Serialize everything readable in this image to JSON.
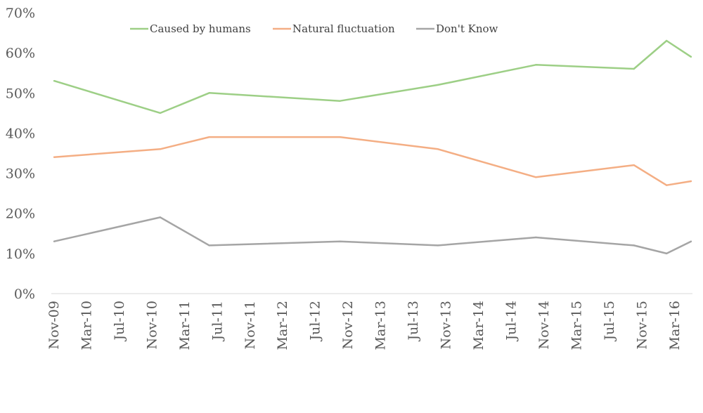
{
  "chart_data": {
    "type": "line",
    "title": "",
    "xlabel": "",
    "ylabel": "",
    "x_tick_labels": [
      "Nov-09",
      "Mar-10",
      "Jul-10",
      "Nov-10",
      "Mar-11",
      "Jul-11",
      "Nov-11",
      "Mar-12",
      "Jul-12",
      "Nov-12",
      "Mar-13",
      "Jul-13",
      "Nov-13",
      "Mar-14",
      "Jul-14",
      "Nov-14",
      "Mar-15",
      "Jul-15",
      "Nov-15",
      "Mar-16"
    ],
    "x_range": [
      "Nov-09",
      "May-16"
    ],
    "y_tick_labels": [
      "0%",
      "10%",
      "20%",
      "30%",
      "40%",
      "50%",
      "60%",
      "70%"
    ],
    "ylim": [
      0,
      70
    ],
    "y_unit": "%",
    "grid": false,
    "legend_position": "top",
    "x": [
      "Nov-09",
      "Dec-10",
      "Jun-11",
      "Oct-12",
      "Oct-13",
      "Oct-14",
      "Oct-15",
      "Feb-16",
      "May-16"
    ],
    "series": [
      {
        "name": "Caused by humans",
        "color": "#9dcf86",
        "values": [
          53,
          45,
          50,
          48,
          52,
          57,
          56,
          63,
          59
        ]
      },
      {
        "name": "Natural fluctuation",
        "color": "#f4ae84",
        "values": [
          34,
          36,
          39,
          39,
          36,
          29,
          32,
          27,
          28
        ]
      },
      {
        "name": "Don't Know",
        "color": "#a5a5a5",
        "values": [
          13,
          19,
          12,
          13,
          12,
          14,
          12,
          10,
          13
        ]
      }
    ]
  }
}
